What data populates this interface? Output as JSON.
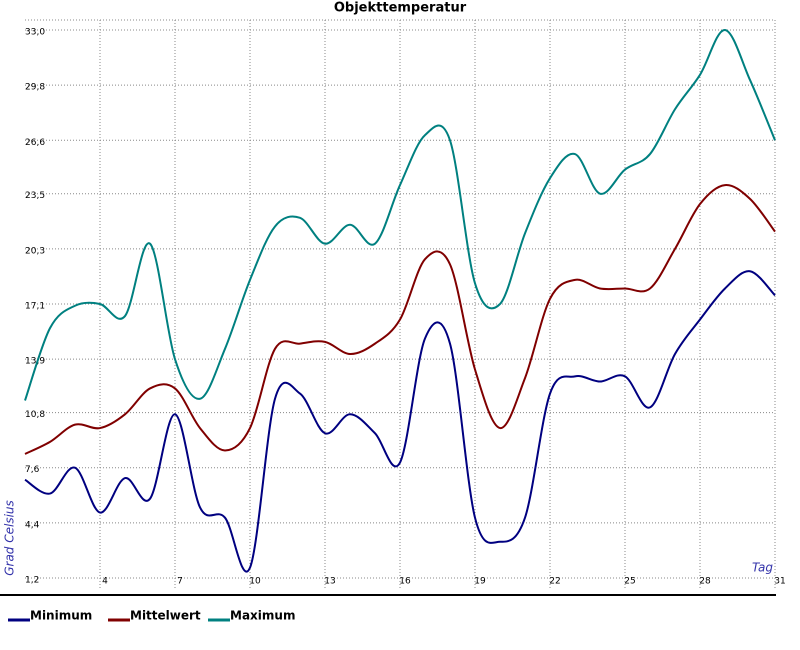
{
  "chart_data": {
    "type": "line",
    "title": "Objekttemperatur",
    "x_label": "Tag",
    "y_label": "Grad Celsius",
    "x": [
      1,
      2,
      3,
      4,
      5,
      6,
      7,
      8,
      9,
      10,
      11,
      12,
      13,
      14,
      15,
      16,
      17,
      18,
      19,
      20,
      21,
      22,
      23,
      24,
      25,
      26,
      27,
      28,
      29,
      30,
      31
    ],
    "xlim": [
      1,
      31
    ],
    "xticks": [
      4,
      7,
      10,
      13,
      16,
      19,
      22,
      25,
      28,
      31
    ],
    "ylim": [
      1.2,
      33.0
    ],
    "yticks": [
      {
        "value": 1.2,
        "label": "1,2"
      },
      {
        "value": 4.4,
        "label": "4,4"
      },
      {
        "value": 7.6,
        "label": "7,6"
      },
      {
        "value": 10.8,
        "label": "10,8"
      },
      {
        "value": 13.9,
        "label": "13,9"
      },
      {
        "value": 17.1,
        "label": "17,1"
      },
      {
        "value": 20.3,
        "label": "20,3"
      },
      {
        "value": 23.5,
        "label": "23,5"
      },
      {
        "value": 26.6,
        "label": "26,6"
      },
      {
        "value": 29.8,
        "label": "29,8"
      },
      {
        "value": 33.0,
        "label": "33,0"
      }
    ],
    "grid": true,
    "series": [
      {
        "name": "Minimum",
        "color": "#000080",
        "values": [
          6.9,
          6.1,
          7.6,
          5.0,
          7.0,
          5.8,
          10.7,
          5.3,
          4.7,
          1.8,
          11.6,
          11.9,
          9.6,
          10.7,
          9.6,
          7.9,
          15.1,
          14.8,
          4.7,
          3.3,
          4.7,
          11.9,
          12.9,
          12.6,
          12.9,
          11.1,
          14.2,
          16.2,
          18.0,
          19.0,
          17.6
        ]
      },
      {
        "name": "Mittelwert",
        "color": "#800000",
        "values": [
          8.4,
          9.1,
          10.1,
          9.9,
          10.7,
          12.2,
          12.2,
          9.9,
          8.6,
          9.9,
          14.5,
          14.8,
          14.9,
          14.2,
          14.8,
          16.2,
          19.7,
          19.4,
          13.3,
          9.9,
          12.8,
          17.4,
          18.5,
          18.0,
          18.0,
          18.0,
          20.3,
          22.9,
          24.0,
          23.2,
          21.3
        ]
      },
      {
        "name": "Maximum",
        "color": "#008080",
        "values": [
          11.5,
          15.7,
          17.0,
          17.1,
          16.4,
          20.6,
          13.9,
          11.6,
          14.5,
          18.5,
          21.6,
          22.1,
          20.6,
          21.7,
          20.6,
          24.0,
          26.9,
          26.6,
          18.3,
          17.1,
          21.2,
          24.4,
          25.8,
          23.5,
          24.9,
          25.8,
          28.4,
          30.4,
          33.0,
          30.1,
          26.6
        ]
      }
    ]
  }
}
